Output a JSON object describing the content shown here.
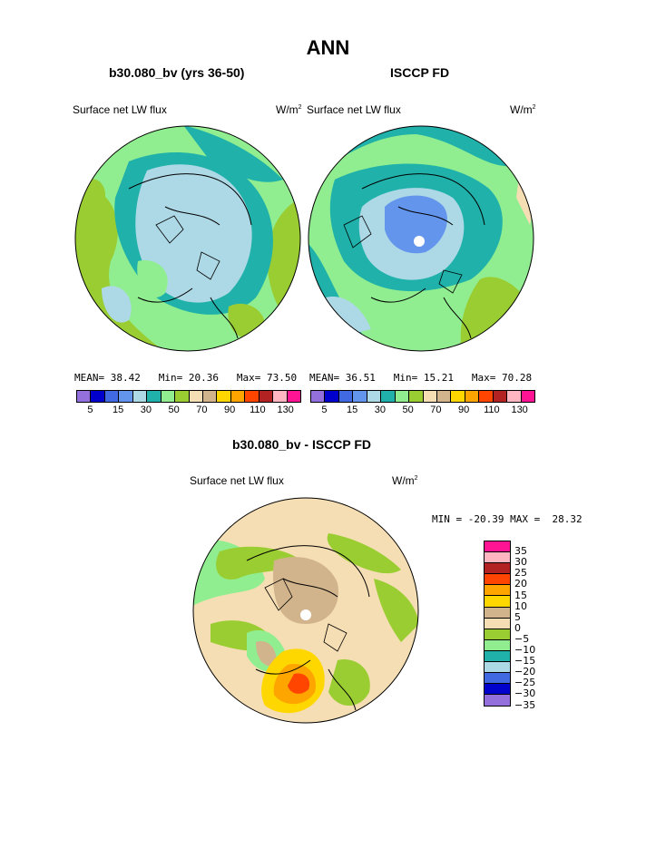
{
  "title": "ANN",
  "panels": {
    "model": {
      "title": "b30.080_bv (yrs 36-50)",
      "variable": "Surface net LW flux",
      "units": "W/m",
      "units_exp": "2",
      "stats": {
        "mean_label": "MEAN=",
        "mean": "38.42",
        "min_label": "Min=",
        "min": "20.36",
        "max_label": "Max=",
        "max": "73.50"
      }
    },
    "obs": {
      "title": "ISCCP FD",
      "variable": "Surface net LW flux",
      "units": "W/m",
      "units_exp": "2",
      "stats": {
        "mean_label": "MEAN=",
        "mean": "36.51",
        "min_label": "Min=",
        "min": "15.21",
        "max_label": "Max=",
        "max": "70.28"
      }
    },
    "diff": {
      "title": "b30.080_bv - ISCCP FD",
      "variable": "Surface net LW flux",
      "units": "W/m",
      "units_exp": "2",
      "stats": {
        "min_label": "MIN =",
        "min": "-20.39",
        "max_label": "MAX =",
        "max": "28.32"
      }
    }
  },
  "colorbar_top": {
    "colors": [
      "#9370db",
      "#0000cd",
      "#4169e1",
      "#6495ed",
      "#add8e6",
      "#20b2aa",
      "#90ee90",
      "#9acd32",
      "#f5deb3",
      "#d2b48c",
      "#ffd700",
      "#ffa500",
      "#ff4500",
      "#b22222",
      "#ffb6c1",
      "#ff1493"
    ],
    "labels": [
      "5",
      "15",
      "30",
      "50",
      "70",
      "90",
      "110",
      "130"
    ]
  },
  "colorbar_diff": {
    "colors": [
      "#ff1493",
      "#ffb6c1",
      "#b22222",
      "#ff4500",
      "#ffa500",
      "#ffd700",
      "#d2b48c",
      "#f5deb3",
      "#9acd32",
      "#90ee90",
      "#20b2aa",
      "#add8e6",
      "#4169e1",
      "#0000cd",
      "#9370db"
    ],
    "labels": [
      "35",
      "30",
      "25",
      "20",
      "15",
      "10",
      "5",
      "0",
      "−5",
      "−10",
      "−15",
      "−20",
      "−25",
      "−30",
      "−35"
    ]
  }
}
